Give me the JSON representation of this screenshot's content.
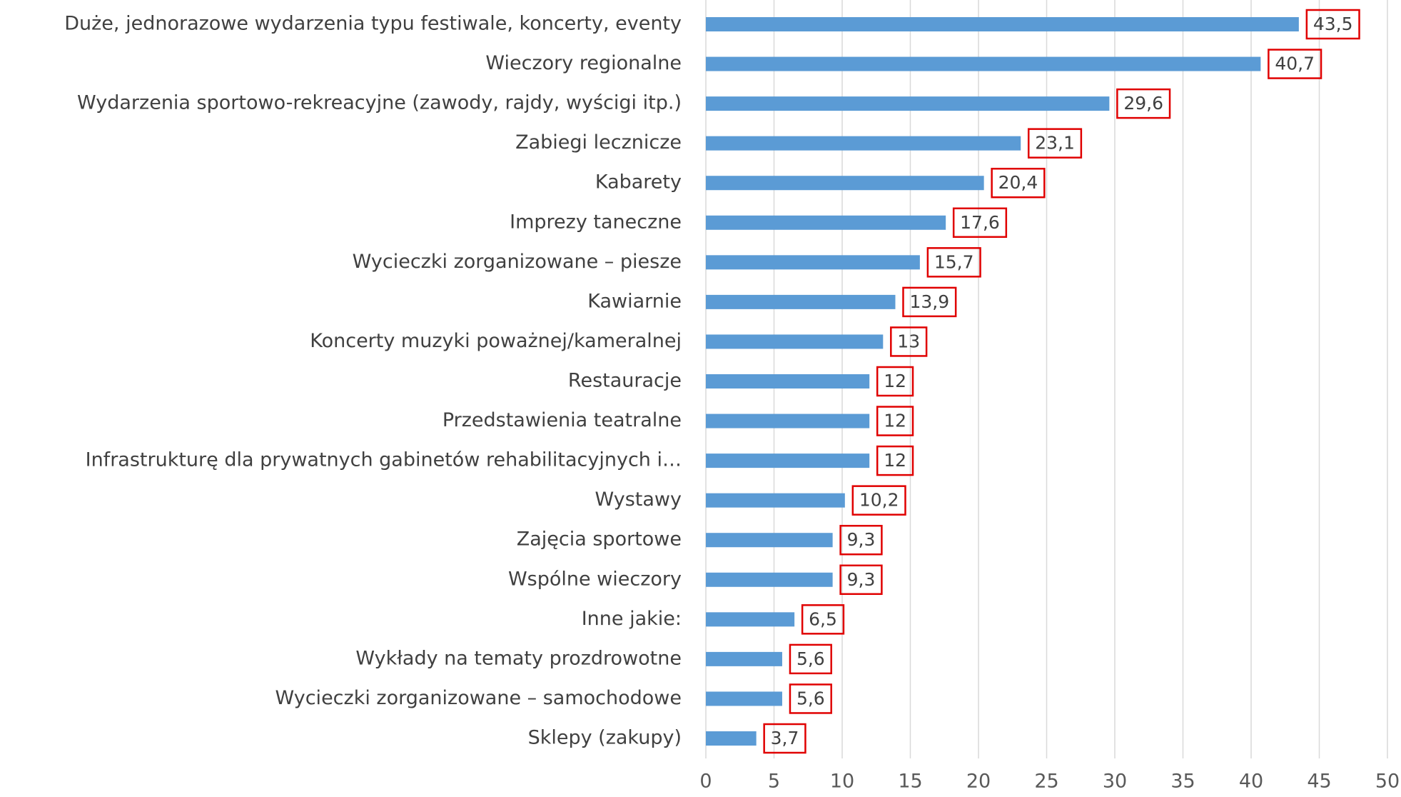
{
  "chart_data": {
    "type": "barh",
    "categories": [
      "Duże, jednorazowe wydarzenia typu festiwale, koncerty, eventy",
      "Wieczory regionalne",
      "Wydarzenia sportowo-rekreacyjne (zawody, rajdy, wyścigi itp.)",
      "Zabiegi lecznicze",
      "Kabarety",
      "Imprezy taneczne",
      "Wycieczki zorganizowane – piesze",
      "Kawiarnie",
      "Koncerty muzyki poważnej/kameralnej",
      "Restauracje",
      "Przedstawienia teatralne",
      "Infrastrukturę dla prywatnych gabinetów rehabilitacyjnych i…",
      "Wystawy",
      "Zajęcia sportowe",
      "Wspólne wieczory",
      "Inne jakie:",
      "Wykłady na tematy prozdrowotne",
      "Wycieczki zorganizowane – samochodowe",
      "Sklepy (zakupy)"
    ],
    "values": [
      43.5,
      40.7,
      29.6,
      23.1,
      20.4,
      17.6,
      15.7,
      13.9,
      13,
      12,
      12,
      12,
      10.2,
      9.3,
      9.3,
      6.5,
      5.6,
      5.6,
      3.7
    ],
    "value_labels": [
      "43,5",
      "40,7",
      "29,6",
      "23,1",
      "20,4",
      "17,6",
      "15,7",
      "13,9",
      "13",
      "12",
      "12",
      "12",
      "10,2",
      "9,3",
      "9,3",
      "6,5",
      "5,6",
      "5,6",
      "3,7"
    ],
    "color": "#5b9bd5",
    "label_border_color": "#e00000",
    "xlim": [
      0,
      50
    ],
    "xticks": [
      0,
      5,
      10,
      15,
      20,
      25,
      30,
      35,
      40,
      45,
      50
    ],
    "grid": true
  }
}
